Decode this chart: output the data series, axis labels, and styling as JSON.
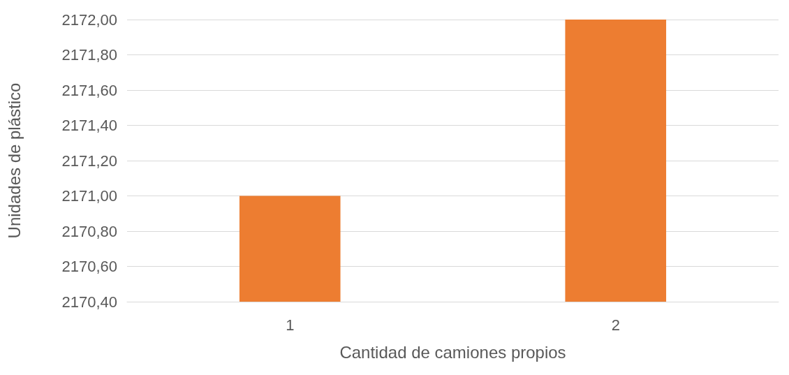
{
  "chart_data": {
    "type": "bar",
    "xlabel": "Cantidad de camiones propios",
    "ylabel": "Unidades de plástico",
    "categories": [
      "1",
      "2"
    ],
    "series": [
      {
        "color": "#ed7d31",
        "values": [
          2171.0,
          2172.0
        ]
      }
    ],
    "ylim": [
      2170.4,
      2172.0
    ],
    "yticks": [
      {
        "value": 2170.4,
        "label": "2170,40"
      },
      {
        "value": 2170.6,
        "label": "2170,60"
      },
      {
        "value": 2170.8,
        "label": "2170,80"
      },
      {
        "value": 2171.0,
        "label": "2171,00"
      },
      {
        "value": 2171.2,
        "label": "2171,20"
      },
      {
        "value": 2171.4,
        "label": "2171,40"
      },
      {
        "value": 2171.6,
        "label": "2171,60"
      },
      {
        "value": 2171.8,
        "label": "2171,80"
      },
      {
        "value": 2172.0,
        "label": "2172,00"
      }
    ],
    "grid": "y"
  }
}
